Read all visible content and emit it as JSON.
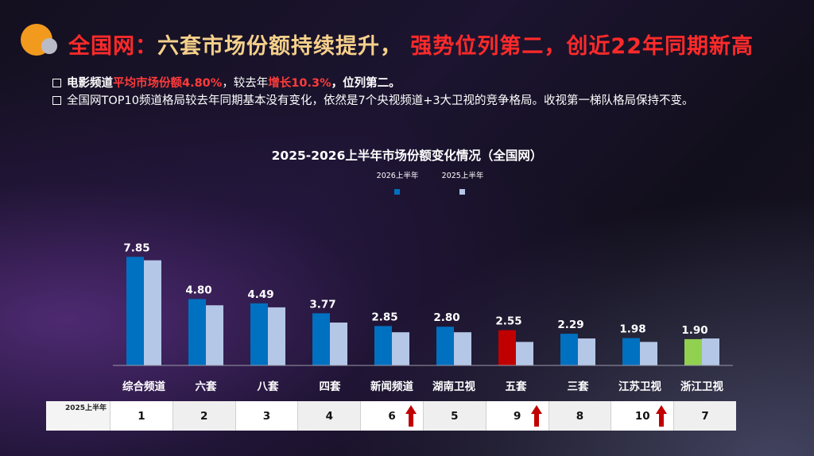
{
  "header": {
    "title_part1": "全国网：",
    "title_part2": "六套市场份额持续提升，",
    "title_part3": "强势位列第二，创近22年同期新高"
  },
  "bullets": {
    "b1_label": "电影频道",
    "b1_hl1": "平均市场份额4.80%",
    "b1_mid": "，较去年",
    "b1_hl2": "增长10.3%",
    "b1_end": "，位列第二。",
    "b2_text": "全国网TOP10频道格局较去年同期基本没有变化，依然是7个央视频道+3大卫视的竞争格局。收视第一梯队格局保持不变。"
  },
  "colors": {
    "series_2026": "#0070c0",
    "series_2025": "#b4c7e7",
    "highlight_red": "#c00000",
    "highlight_green": "#92d050"
  },
  "chart_data": {
    "type": "bar",
    "title": "2025-2026上半年市场份额变化情况（全国网）",
    "categories": [
      "综合频道",
      "六套",
      "八套",
      "四套",
      "新闻频道",
      "湖南卫视",
      "五套",
      "三套",
      "江苏卫视",
      "浙江卫视"
    ],
    "series": [
      {
        "name": "2026上半年",
        "values": [
          7.85,
          4.8,
          4.49,
          3.77,
          2.85,
          2.8,
          2.55,
          2.29,
          1.98,
          1.9
        ],
        "labels": [
          "7.85",
          "4.80",
          "4.49",
          "3.77",
          "2.85",
          "2.80",
          "2.55",
          "2.29",
          "1.98",
          "1.90"
        ]
      },
      {
        "name": "2025上半年",
        "values": [
          7.6,
          4.35,
          4.2,
          3.1,
          2.4,
          2.4,
          1.7,
          1.95,
          1.7,
          1.95
        ]
      }
    ],
    "bar_color_overrides_2026": {
      "6": "red",
      "9": "green"
    },
    "ylim": [
      0,
      8.5
    ],
    "legend_position": "top-center",
    "rank_table": {
      "header": "2025上半年",
      "ranks": [
        "1",
        "2",
        "3",
        "4",
        "6",
        "5",
        "9",
        "8",
        "10",
        "7"
      ],
      "up_arrow_indices": [
        4,
        6,
        8
      ]
    }
  }
}
